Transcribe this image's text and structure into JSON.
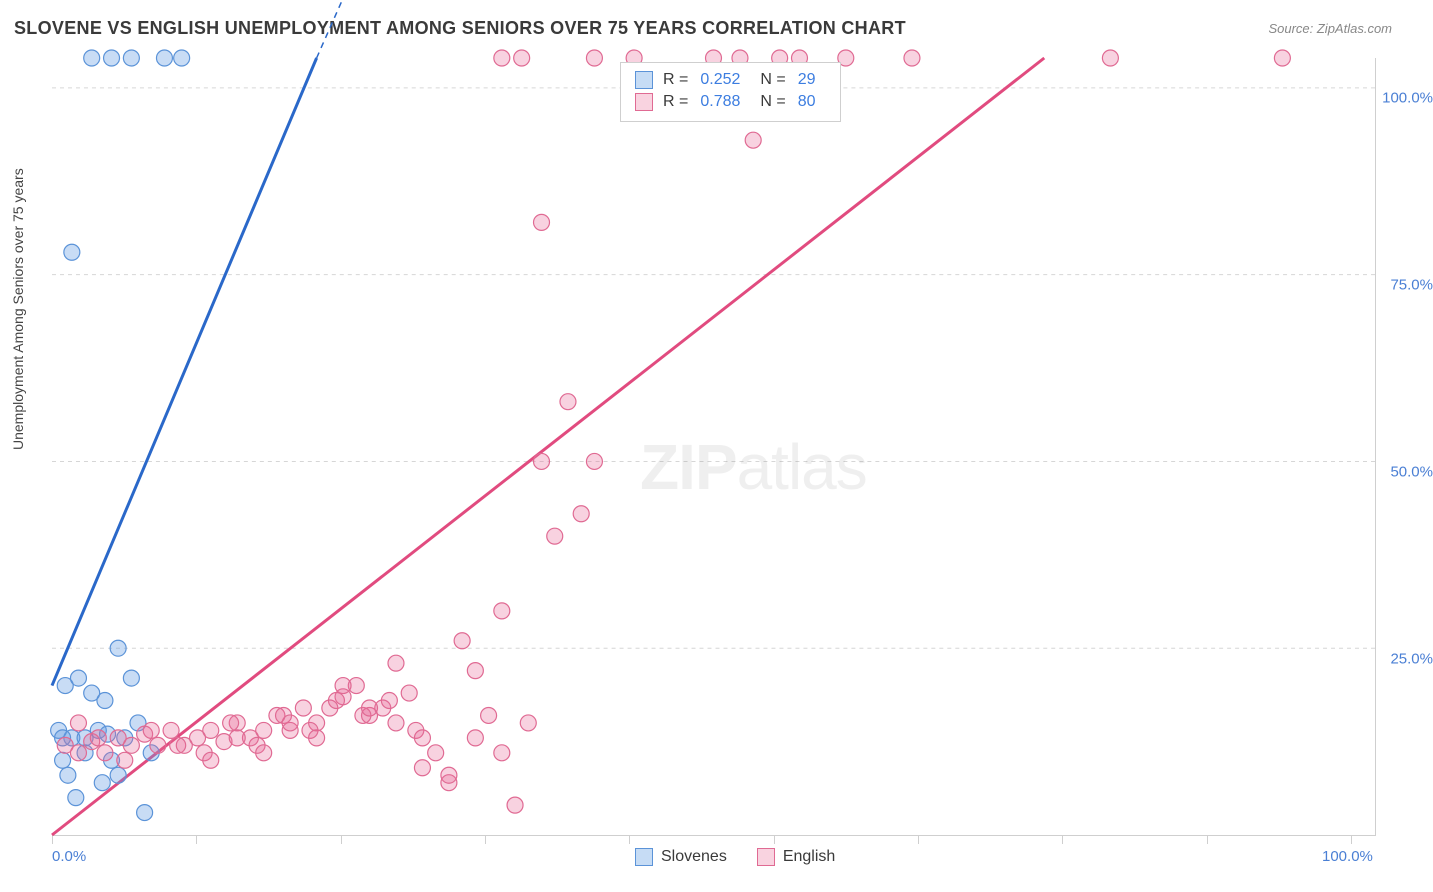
{
  "title": "SLOVENE VS ENGLISH UNEMPLOYMENT AMONG SENIORS OVER 75 YEARS CORRELATION CHART",
  "source": "Source: ZipAtlas.com",
  "y_axis_label": "Unemployment Among Seniors over 75 years",
  "watermark_zip": "ZIP",
  "watermark_atlas": "atlas",
  "chart": {
    "type": "scatter-correlation",
    "background_color": "#ffffff",
    "grid_color": "#d6d6d6",
    "border_color": "#cfcfcf",
    "axis_label_color": "#4a7fd4",
    "tick_fontsize": 15,
    "xlim": [
      0,
      100
    ],
    "ylim": [
      0,
      104
    ],
    "x_ticks": [
      0,
      10.9,
      21.8,
      32.7,
      43.6,
      54.5,
      65.4,
      76.3,
      87.2,
      98.1
    ],
    "x_tick_labels": {
      "0": "0.0%",
      "100": "100.0%"
    },
    "y_ticks": [
      25,
      50,
      75,
      100
    ],
    "y_tick_labels": {
      "25": "25.0%",
      "50": "50.0%",
      "75": "75.0%",
      "100": "100.0%"
    },
    "series": [
      {
        "name": "Slovenes",
        "color_fill": "rgba(96,155,226,0.35)",
        "color_stroke": "#5b93d8",
        "marker_radius": 8,
        "legend_swatch_fill": "#c6dcf5",
        "legend_swatch_stroke": "#5b93d8",
        "stats": {
          "R": "0.252",
          "N": "29"
        },
        "trendline": {
          "color": "#2a68c9",
          "width": 3,
          "x1": 0,
          "y1": 20,
          "x2": 20,
          "y2": 104,
          "dash_extension": {
            "x2": 22,
            "y2": 112
          }
        },
        "points": [
          [
            0.5,
            14
          ],
          [
            0.8,
            10
          ],
          [
            1,
            20
          ],
          [
            1.2,
            8
          ],
          [
            1.5,
            13
          ],
          [
            1.8,
            5
          ],
          [
            2,
            21
          ],
          [
            2.5,
            11
          ],
          [
            3,
            19
          ],
          [
            3.5,
            14
          ],
          [
            4,
            18
          ],
          [
            4.5,
            10
          ],
          [
            5,
            25
          ],
          [
            5.5,
            13
          ],
          [
            6,
            21
          ],
          [
            6.5,
            15
          ],
          [
            7,
            3
          ],
          [
            7.5,
            11
          ],
          [
            3,
            104
          ],
          [
            4.5,
            104
          ],
          [
            6,
            104
          ],
          [
            8.5,
            104
          ],
          [
            9.8,
            104
          ],
          [
            1.5,
            78
          ],
          [
            5,
            8
          ],
          [
            2.5,
            13
          ],
          [
            3.8,
            7
          ],
          [
            4.2,
            13.5
          ],
          [
            0.8,
            13
          ]
        ]
      },
      {
        "name": "English",
        "color_fill": "rgba(232,107,152,0.30)",
        "color_stroke": "#e06a93",
        "marker_radius": 8,
        "legend_swatch_fill": "#f9d3e0",
        "legend_swatch_stroke": "#e06a93",
        "stats": {
          "R": "0.788",
          "N": "80"
        },
        "trendline": {
          "color": "#e14b7f",
          "width": 3,
          "x1": 0,
          "y1": 0,
          "x2": 75,
          "y2": 104
        },
        "points": [
          [
            1,
            12
          ],
          [
            2,
            11
          ],
          [
            3,
            12.5
          ],
          [
            4,
            11
          ],
          [
            5,
            13
          ],
          [
            6,
            12
          ],
          [
            7,
            13.5
          ],
          [
            8,
            12
          ],
          [
            9,
            14
          ],
          [
            10,
            12
          ],
          [
            11,
            13
          ],
          [
            12,
            14
          ],
          [
            13,
            12.5
          ],
          [
            14,
            15
          ],
          [
            15,
            13
          ],
          [
            16,
            14
          ],
          [
            17,
            16
          ],
          [
            18,
            14
          ],
          [
            19,
            17
          ],
          [
            20,
            15
          ],
          [
            21,
            17
          ],
          [
            22,
            18.5
          ],
          [
            23,
            20
          ],
          [
            24,
            16
          ],
          [
            25,
            17
          ],
          [
            26,
            23
          ],
          [
            27,
            19
          ],
          [
            28,
            9
          ],
          [
            29,
            11
          ],
          [
            30,
            7
          ],
          [
            31,
            26
          ],
          [
            32,
            22
          ],
          [
            33,
            16
          ],
          [
            34,
            30
          ],
          [
            35,
            4
          ],
          [
            36,
            15
          ],
          [
            37,
            50
          ],
          [
            38,
            40
          ],
          [
            39,
            58
          ],
          [
            40,
            43
          ],
          [
            41,
            50
          ],
          [
            34,
            104
          ],
          [
            35.5,
            104
          ],
          [
            41,
            104
          ],
          [
            44,
            104
          ],
          [
            50,
            104
          ],
          [
            52,
            104
          ],
          [
            55,
            104
          ],
          [
            56.5,
            104
          ],
          [
            60,
            104
          ],
          [
            65,
            104
          ],
          [
            80,
            104
          ],
          [
            93,
            104
          ],
          [
            53,
            93
          ],
          [
            37,
            82
          ],
          [
            2,
            15
          ],
          [
            3.5,
            13
          ],
          [
            5.5,
            10
          ],
          [
            7.5,
            14
          ],
          [
            9.5,
            12
          ],
          [
            11.5,
            11
          ],
          [
            13.5,
            15
          ],
          [
            15.5,
            12
          ],
          [
            17.5,
            16
          ],
          [
            19.5,
            14
          ],
          [
            21.5,
            18
          ],
          [
            23.5,
            16
          ],
          [
            25.5,
            18
          ],
          [
            27.5,
            14
          ],
          [
            12,
            10
          ],
          [
            14,
            13
          ],
          [
            16,
            11
          ],
          [
            18,
            15
          ],
          [
            20,
            13
          ],
          [
            22,
            20
          ],
          [
            24,
            17
          ],
          [
            26,
            15
          ],
          [
            28,
            13
          ],
          [
            30,
            8
          ],
          [
            32,
            13
          ],
          [
            34,
            11
          ]
        ]
      }
    ]
  },
  "bottom_legend": {
    "items": [
      {
        "label": "Slovenes",
        "fill": "#c6dcf5",
        "stroke": "#5b93d8"
      },
      {
        "label": "English",
        "fill": "#f9d3e0",
        "stroke": "#e06a93"
      }
    ]
  }
}
